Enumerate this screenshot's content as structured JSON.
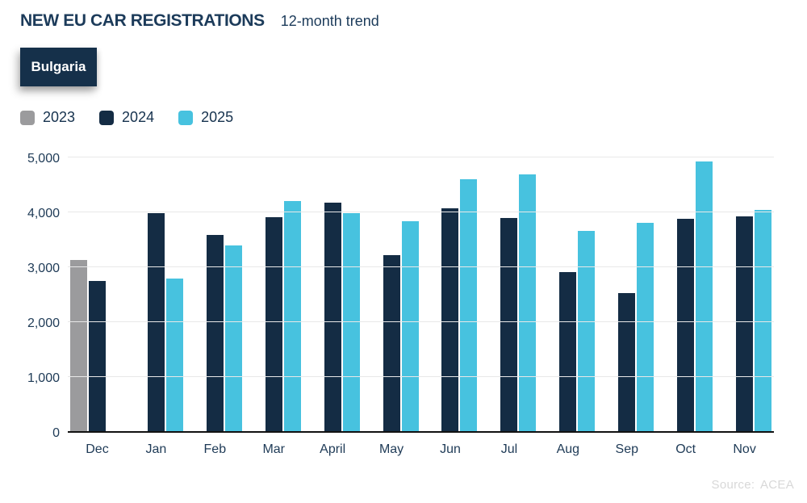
{
  "header": {
    "title": "NEW EU CAR REGISTRATIONS",
    "subtitle": "12-month trend"
  },
  "country_tab": {
    "label": "Bulgaria"
  },
  "source": "Source: ACEA",
  "colors": {
    "gray": "#9b9b9d",
    "navy": "#142c44",
    "cyan": "#47c2df",
    "heading_text": "#1c3b5a",
    "axis_text": "#1e3a56",
    "grid": "#e8e8e8",
    "axis_line": "#111111",
    "tab_bg": "#15304a",
    "source_text": "#d8d8d8"
  },
  "chart_data": {
    "type": "bar",
    "title": "NEW EU CAR REGISTRATIONS",
    "subtitle": "12-month trend",
    "xlabel": "",
    "ylabel": "",
    "categories": [
      "Dec",
      "Jan",
      "Feb",
      "Mar",
      "April",
      "May",
      "Jun",
      "Jul",
      "Aug",
      "Sep",
      "Oct",
      "Nov"
    ],
    "series": [
      {
        "name": "2023",
        "color_key": "gray",
        "values": [
          3130,
          null,
          null,
          null,
          null,
          null,
          null,
          null,
          null,
          null,
          null,
          null
        ]
      },
      {
        "name": "2024",
        "color_key": "navy",
        "values": [
          2750,
          3990,
          3590,
          3920,
          4190,
          3220,
          4090,
          3900,
          2910,
          2530,
          3890,
          3940
        ]
      },
      {
        "name": "2025",
        "color_key": "cyan",
        "values": [
          null,
          2790,
          3400,
          4210,
          4000,
          3840,
          4620,
          4710,
          3670,
          3810,
          4940,
          4050
        ]
      }
    ],
    "ylim": [
      0,
      5000
    ],
    "yticks": [
      0,
      1000,
      2000,
      3000,
      4000,
      5000
    ],
    "ytick_labels": [
      "0",
      "1,000",
      "2,000",
      "3,000",
      "4,000",
      "5,000"
    ],
    "grid": true,
    "legend_position": "top-left"
  }
}
